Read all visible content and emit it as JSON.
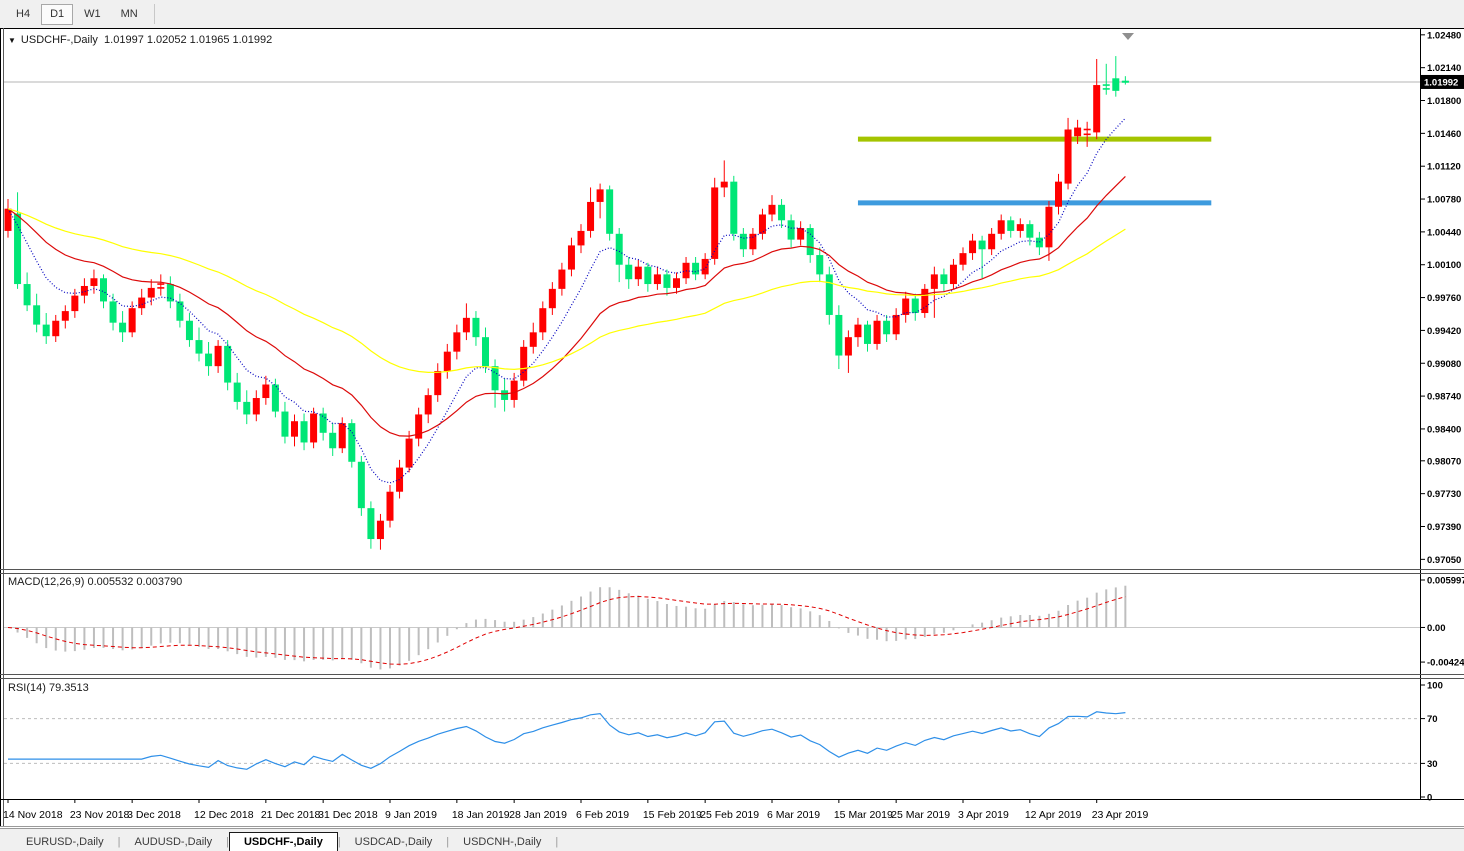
{
  "toolbar": {
    "periods": [
      {
        "label": "H4",
        "active": false
      },
      {
        "label": "D1",
        "active": true
      },
      {
        "label": "W1",
        "active": false
      },
      {
        "label": "MN",
        "active": false
      }
    ]
  },
  "window_tabs": [
    {
      "label": "EURUSD-,Daily",
      "active": false
    },
    {
      "label": "AUDUSD-,Daily",
      "active": false
    },
    {
      "label": "USDCHF-,Daily",
      "active": true
    },
    {
      "label": "USDCAD-,Daily",
      "active": false
    },
    {
      "label": "USDCNH-,Daily",
      "active": false
    }
  ],
  "colors": {
    "bull_candle": "#FF0000",
    "bear_candle": "#00E676",
    "ma_fast": "#0000C0",
    "ma_mid": "#DC0A0A",
    "ma_slow": "#FFFF00",
    "macd_hist": "#BEBEBE",
    "macd_signal": "#E00000",
    "rsi_line": "#2E8FE8",
    "level_dash": "#BDBDBD",
    "hline_olive": "#A4C400",
    "hline_blue": "#3D9BDE",
    "current_price_line": "#B4B4B4",
    "price_box_bg": "#000000",
    "price_box_text": "#FFFFFF",
    "chart_bg": "#FFFFFF",
    "chrome_bg": "#F0F0F0"
  },
  "chart_data": {
    "type": "candlestick",
    "title": "USDCHF-,Daily",
    "title_ohlc": "1.01997 1.02052 1.01965 1.01992",
    "current_candle": {
      "open": "1.01997",
      "high": "1.02052",
      "low": "1.01965",
      "close": "1.01992"
    },
    "current_price": 1.01992,
    "current_price_label": "1.01992",
    "price_axis": {
      "range": {
        "top": 1.0253,
        "bottom": 0.9695
      },
      "ticks": [
        "1.02480",
        "1.02140",
        "1.01800",
        "1.01460",
        "1.01120",
        "1.00780",
        "1.00440",
        "1.00100",
        "0.99760",
        "0.99420",
        "0.99080",
        "0.98740",
        "0.98400",
        "0.98070",
        "0.97730",
        "0.97390",
        "0.97050"
      ]
    },
    "x_labels": [
      {
        "i": 0,
        "label": "14 Nov 2018"
      },
      {
        "i": 7,
        "label": "23 Nov 2018"
      },
      {
        "i": 13,
        "label": "3 Dec 2018"
      },
      {
        "i": 20,
        "label": "12 Dec 2018"
      },
      {
        "i": 27,
        "label": "21 Dec 2018"
      },
      {
        "i": 33,
        "label": "31 Dec 2018"
      },
      {
        "i": 40,
        "label": "9 Jan 2019"
      },
      {
        "i": 47,
        "label": "18 Jan 2019"
      },
      {
        "i": 53,
        "label": "28 Jan 2019"
      },
      {
        "i": 60,
        "label": "6 Feb 2019"
      },
      {
        "i": 67,
        "label": "15 Feb 2019"
      },
      {
        "i": 73,
        "label": "25 Feb 2019"
      },
      {
        "i": 80,
        "label": "6 Mar 2019"
      },
      {
        "i": 87,
        "label": "15 Mar 2019"
      },
      {
        "i": 93,
        "label": "25 Mar 2019"
      },
      {
        "i": 100,
        "label": "3 Apr 2019"
      },
      {
        "i": 107,
        "label": "12 Apr 2019"
      },
      {
        "i": 114,
        "label": "23 Apr 2019"
      }
    ],
    "candles": [
      [
        1.0045,
        1.0078,
        1.0038,
        1.0068
      ],
      [
        1.0063,
        1.0085,
        0.9985,
        0.999
      ],
      [
        0.999,
        1.0002,
        0.9962,
        0.9968
      ],
      [
        0.9968,
        0.998,
        0.994,
        0.9948
      ],
      [
        0.9948,
        0.996,
        0.9928,
        0.9936
      ],
      [
        0.9936,
        0.9958,
        0.993,
        0.9952
      ],
      [
        0.9952,
        0.9968,
        0.9944,
        0.9962
      ],
      [
        0.9962,
        0.9985,
        0.9955,
        0.9978
      ],
      [
        0.9978,
        0.9996,
        0.997,
        0.9988
      ],
      [
        0.9988,
        1.0005,
        0.998,
        0.9996
      ],
      [
        0.9996,
        1.0,
        0.9965,
        0.9972
      ],
      [
        0.9972,
        0.998,
        0.9942,
        0.995
      ],
      [
        0.995,
        0.9962,
        0.993,
        0.994
      ],
      [
        0.994,
        0.9972,
        0.9935,
        0.9965
      ],
      [
        0.9965,
        0.9985,
        0.9958,
        0.9976
      ],
      [
        0.9976,
        0.9995,
        0.9968,
        0.9986
      ],
      [
        0.9986,
        1.0,
        0.9978,
        0.999
      ],
      [
        0.999,
        0.9998,
        0.9965,
        0.9972
      ],
      [
        0.9972,
        0.998,
        0.9945,
        0.9952
      ],
      [
        0.9952,
        0.996,
        0.9925,
        0.9932
      ],
      [
        0.9932,
        0.9945,
        0.991,
        0.9918
      ],
      [
        0.9918,
        0.993,
        0.9895,
        0.9905
      ],
      [
        0.9905,
        0.9932,
        0.9898,
        0.9926
      ],
      [
        0.9926,
        0.9932,
        0.988,
        0.9888
      ],
      [
        0.9888,
        0.9898,
        0.986,
        0.9868
      ],
      [
        0.9868,
        0.988,
        0.9845,
        0.9855
      ],
      [
        0.9855,
        0.988,
        0.9848,
        0.9872
      ],
      [
        0.9872,
        0.9895,
        0.9865,
        0.9886
      ],
      [
        0.9886,
        0.9892,
        0.9852,
        0.9858
      ],
      [
        0.9858,
        0.9868,
        0.9825,
        0.9832
      ],
      [
        0.9832,
        0.9855,
        0.9822,
        0.9848
      ],
      [
        0.9848,
        0.9856,
        0.9818,
        0.9826
      ],
      [
        0.9826,
        0.9862,
        0.982,
        0.9856
      ],
      [
        0.9856,
        0.9862,
        0.9828,
        0.9836
      ],
      [
        0.9836,
        0.9846,
        0.9812,
        0.982
      ],
      [
        0.982,
        0.9852,
        0.9815,
        0.9846
      ],
      [
        0.9846,
        0.985,
        0.98,
        0.9806
      ],
      [
        0.9806,
        0.9812,
        0.975,
        0.9758
      ],
      [
        0.9758,
        0.9765,
        0.9716,
        0.9726
      ],
      [
        0.9726,
        0.9752,
        0.9715,
        0.9745
      ],
      [
        0.9745,
        0.9782,
        0.9738,
        0.9775
      ],
      [
        0.9775,
        0.9808,
        0.9768,
        0.98
      ],
      [
        0.98,
        0.9838,
        0.9795,
        0.983
      ],
      [
        0.983,
        0.9862,
        0.9822,
        0.9855
      ],
      [
        0.9855,
        0.9882,
        0.9846,
        0.9875
      ],
      [
        0.9875,
        0.9908,
        0.9868,
        0.99
      ],
      [
        0.99,
        0.9928,
        0.9892,
        0.992
      ],
      [
        0.992,
        0.9948,
        0.9912,
        0.994
      ],
      [
        0.994,
        0.997,
        0.9932,
        0.9955
      ],
      [
        0.9955,
        0.9962,
        0.9926,
        0.9935
      ],
      [
        0.9935,
        0.9945,
        0.9898,
        0.9905
      ],
      [
        0.9905,
        0.9912,
        0.9862,
        0.988
      ],
      [
        0.988,
        0.9892,
        0.9858,
        0.987
      ],
      [
        0.987,
        0.9898,
        0.9862,
        0.989
      ],
      [
        0.989,
        0.9932,
        0.9884,
        0.9925
      ],
      [
        0.9925,
        0.995,
        0.9918,
        0.994
      ],
      [
        0.994,
        0.9972,
        0.9932,
        0.9965
      ],
      [
        0.9965,
        0.9992,
        0.9958,
        0.9985
      ],
      [
        0.9985,
        1.0012,
        0.9978,
        1.0005
      ],
      [
        1.0005,
        1.0038,
        0.9998,
        1.003
      ],
      [
        1.003,
        1.0052,
        1.0022,
        1.0045
      ],
      [
        1.0045,
        1.009,
        1.0038,
        1.0075
      ],
      [
        1.0075,
        1.0094,
        1.0058,
        1.0088
      ],
      [
        1.0088,
        1.0092,
        1.0035,
        1.0042
      ],
      [
        1.0042,
        1.0048,
        0.9992,
        1.001
      ],
      [
        1.001,
        1.0018,
        0.9985,
        0.9995
      ],
      [
        0.9995,
        1.0015,
        0.9988,
        1.0008
      ],
      [
        1.0008,
        1.0012,
        0.9982,
        0.999
      ],
      [
        0.999,
        1.0008,
        0.9984,
        1.0
      ],
      [
        1.0,
        1.0005,
        0.9978,
        0.9986
      ],
      [
        0.9986,
        1.0002,
        0.998,
        0.9996
      ],
      [
        0.9996,
        1.0018,
        0.999,
        1.0012
      ],
      [
        1.0012,
        1.0018,
        0.9994,
        1.0
      ],
      [
        1.0,
        1.0022,
        0.9995,
        1.0016
      ],
      [
        1.0016,
        1.01,
        1.001,
        1.009
      ],
      [
        1.009,
        1.0118,
        1.008,
        1.0096
      ],
      [
        1.0096,
        1.0102,
        1.0035,
        1.0042
      ],
      [
        1.0042,
        1.0048,
        1.0018,
        1.0026
      ],
      [
        1.0026,
        1.0048,
        1.002,
        1.0042
      ],
      [
        1.0042,
        1.0068,
        1.0036,
        1.0062
      ],
      [
        1.0062,
        1.0082,
        1.0055,
        1.0072
      ],
      [
        1.0072,
        1.0078,
        1.0048,
        1.0056
      ],
      [
        1.0056,
        1.0062,
        1.0028,
        1.0036
      ],
      [
        1.0036,
        1.0055,
        1.003,
        1.0048
      ],
      [
        1.0048,
        1.0052,
        1.0012,
        1.002
      ],
      [
        1.002,
        1.0028,
        0.9992,
        1.0
      ],
      [
        1.0,
        1.0008,
        0.9948,
        0.9958
      ],
      [
        0.9958,
        0.9968,
        0.9902,
        0.9916
      ],
      [
        0.9916,
        0.9942,
        0.9898,
        0.9935
      ],
      [
        0.9935,
        0.9955,
        0.9925,
        0.9948
      ],
      [
        0.9948,
        0.9952,
        0.992,
        0.9928
      ],
      [
        0.9928,
        0.9958,
        0.9922,
        0.9952
      ],
      [
        0.9952,
        0.9958,
        0.993,
        0.9938
      ],
      [
        0.9938,
        0.9965,
        0.9932,
        0.9958
      ],
      [
        0.9958,
        0.9982,
        0.995,
        0.9975
      ],
      [
        0.9975,
        0.998,
        0.9952,
        0.996
      ],
      [
        0.996,
        0.999,
        0.9955,
        0.9985
      ],
      [
        0.9985,
        1.0008,
        0.9955,
        1.0
      ],
      [
        1.0,
        1.0006,
        0.9982,
        0.999
      ],
      [
        0.999,
        1.0016,
        0.9985,
        1.001
      ],
      [
        1.001,
        1.0028,
        1.0004,
        1.0022
      ],
      [
        1.0022,
        1.0042,
        1.0015,
        1.0035
      ],
      [
        1.0035,
        1.004,
        0.9996,
        1.0026
      ],
      [
        1.0026,
        1.0048,
        1.002,
        1.0042
      ],
      [
        1.0042,
        1.0062,
        1.0036,
        1.0056
      ],
      [
        1.0056,
        1.006,
        1.0038,
        1.0045
      ],
      [
        1.0045,
        1.0058,
        1.0038,
        1.0052
      ],
      [
        1.0052,
        1.0056,
        1.003,
        1.0038
      ],
      [
        1.0038,
        1.0044,
        1.002,
        1.0028
      ],
      [
        1.0028,
        1.0076,
        1.0014,
        1.007
      ],
      [
        1.007,
        1.0104,
        1.0062,
        1.0096
      ],
      [
        1.0094,
        1.0162,
        1.0088,
        1.015
      ],
      [
        1.0143,
        1.016,
        1.0135,
        1.0152
      ],
      [
        1.0145,
        1.0158,
        1.0132,
        1.015
      ],
      [
        1.0147,
        1.0223,
        1.014,
        1.0196
      ],
      [
        1.0196,
        1.0218,
        1.0186,
        1.0192
      ],
      [
        1.0203,
        1.0226,
        1.0184,
        1.019
      ],
      [
        1.01997,
        1.02052,
        1.01965,
        1.01992
      ]
    ],
    "overlays": [
      {
        "name": "ma-fast-line",
        "type": "ema",
        "period": 8,
        "color": "#0000C0",
        "dash": "1,2"
      },
      {
        "name": "ma-mid-line",
        "type": "ema",
        "period": 21,
        "color": "#DC0A0A",
        "dash": ""
      },
      {
        "name": "ma-slow-line",
        "type": "ema",
        "period": 50,
        "color": "#FFFF00",
        "dash": ""
      }
    ],
    "hlines": [
      {
        "name": "hline-olive",
        "price": 1.014,
        "color": "#A4C400",
        "from_i": 89,
        "to_i": 126,
        "width": 5
      },
      {
        "name": "hline-blue",
        "price": 1.0074,
        "color": "#3D9BDE",
        "from_i": 89,
        "to_i": 126,
        "width": 5
      }
    ],
    "indicators": {
      "macd": {
        "label": "MACD(12,26,9)",
        "values_text": "0.005532 0.003790",
        "fast": 12,
        "slow": 26,
        "signal": 9,
        "axis": [
          {
            "label": "0.005997",
            "value": 0.005997
          },
          {
            "label": "0.00",
            "value": 0.0
          },
          {
            "label": "-0.004244",
            "value": -0.004244
          }
        ]
      },
      "rsi": {
        "label": "RSI(14)",
        "value_text": "79.3513",
        "period": 14,
        "axis": [
          {
            "label": "100",
            "value": 100
          },
          {
            "label": "70",
            "value": 70
          },
          {
            "label": "30",
            "value": 30
          },
          {
            "label": "0",
            "value": 0
          }
        ],
        "levels": [
          70,
          30
        ]
      }
    }
  }
}
